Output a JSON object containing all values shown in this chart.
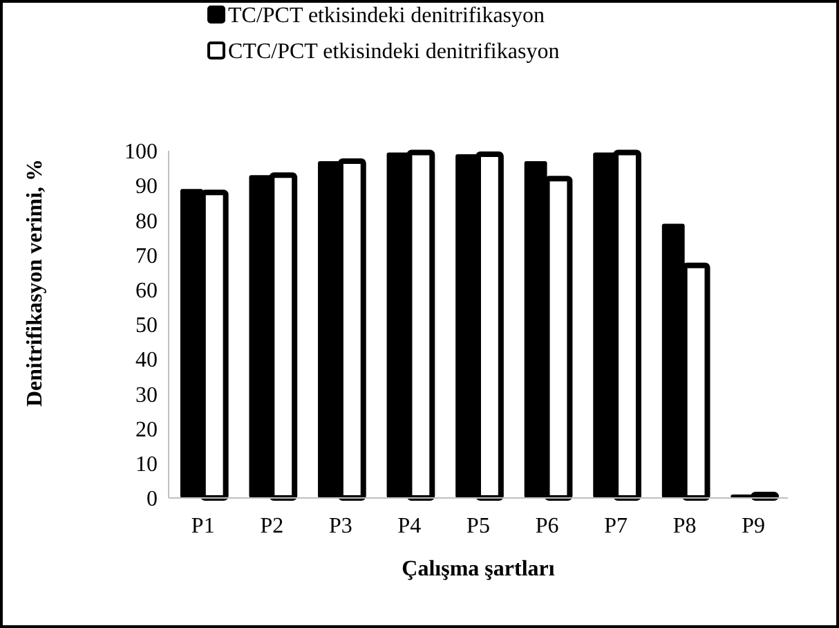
{
  "chart_data": {
    "type": "bar",
    "xlabel": "Çalışma şartları",
    "ylabel": "Denitrifikasyon verimi, %",
    "categories": [
      "P1",
      "P2",
      "P3",
      "P4",
      "P5",
      "P6",
      "P7",
      "P8",
      "P9"
    ],
    "series": [
      {
        "name": "TC/PCT etkisindeki denitrifikasyon",
        "color": "#000000",
        "values": [
          89,
          93,
          97,
          99.5,
          99,
          97,
          99.5,
          79,
          1
        ]
      },
      {
        "name": "CTC/PCT etkisindeki denitrifikasyon",
        "color": "#ffffff",
        "values": [
          88,
          93,
          97,
          99.5,
          99,
          92,
          99.5,
          67,
          1
        ]
      }
    ],
    "ylim": [
      0,
      100
    ],
    "yticks": [
      0,
      10,
      20,
      30,
      40,
      50,
      60,
      70,
      80,
      90,
      100
    ],
    "grid": false,
    "legend": "top"
  }
}
